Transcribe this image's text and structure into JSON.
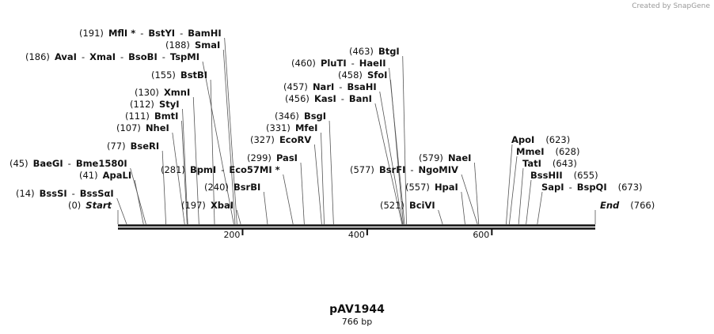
{
  "credit": "Created by SnapGene",
  "plasmid": {
    "name": "pAV1944",
    "size": "766 bp",
    "length": 766
  },
  "separator": "-",
  "axis": {
    "ticks": [
      200,
      400,
      600
    ]
  },
  "sites": [
    {
      "position": {
        "value": 191,
        "label": "(191)"
      },
      "enzymes": [
        "MflI *",
        "BstYI",
        "BamHI"
      ]
    },
    {
      "position": {
        "value": 188,
        "label": "(188)"
      },
      "enzymes": [
        "SmaI"
      ]
    },
    {
      "position": {
        "value": 186,
        "label": "(186)"
      },
      "enzymes": [
        "AvaI",
        "XmaI",
        "BsoBI",
        "TspMI"
      ]
    },
    {
      "position": {
        "value": 155,
        "label": "(155)"
      },
      "enzymes": [
        "BstBI"
      ]
    },
    {
      "position": {
        "value": 130,
        "label": "(130)"
      },
      "enzymes": [
        "XmnI"
      ]
    },
    {
      "position": {
        "value": 112,
        "label": "(112)"
      },
      "enzymes": [
        "StyI"
      ]
    },
    {
      "position": {
        "value": 111,
        "label": "(111)"
      },
      "enzymes": [
        "BmtI"
      ]
    },
    {
      "position": {
        "value": 107,
        "label": "(107)"
      },
      "enzymes": [
        "NheI"
      ]
    },
    {
      "position": {
        "value": 77,
        "label": "(77)"
      },
      "enzymes": [
        "BseRI"
      ]
    },
    {
      "position": {
        "value": 45,
        "label": "(45)"
      },
      "enzymes": [
        "BaeGI",
        "Bme1580I"
      ]
    },
    {
      "position": {
        "value": 41,
        "label": "(41)"
      },
      "enzymes": [
        "ApaLI"
      ]
    },
    {
      "position": {
        "value": 14,
        "label": "(14)"
      },
      "enzymes": [
        "BssSI",
        "BssSαI"
      ]
    },
    {
      "position": {
        "value": 0,
        "label": "(0)"
      },
      "enzymes": [
        "Start"
      ]
    },
    {
      "position": {
        "value": 281,
        "label": "(281)"
      },
      "enzymes": [
        "BpmI",
        "Eco57MI *"
      ]
    },
    {
      "position": {
        "value": 240,
        "label": "(240)"
      },
      "enzymes": [
        "BsrBI"
      ]
    },
    {
      "position": {
        "value": 197,
        "label": "(197)"
      },
      "enzymes": [
        "XbaI"
      ]
    },
    {
      "position": {
        "value": 299,
        "label": "(299)"
      },
      "enzymes": [
        "PasI"
      ]
    },
    {
      "position": {
        "value": 327,
        "label": "(327)"
      },
      "enzymes": [
        "EcoRV"
      ]
    },
    {
      "position": {
        "value": 331,
        "label": "(331)"
      },
      "enzymes": [
        "MfeI"
      ]
    },
    {
      "position": {
        "value": 346,
        "label": "(346)"
      },
      "enzymes": [
        "BsgI"
      ]
    },
    {
      "position": {
        "value": 463,
        "label": "(463)"
      },
      "enzymes": [
        "BtgI"
      ]
    },
    {
      "position": {
        "value": 460,
        "label": "(460)"
      },
      "enzymes": [
        "PluTI",
        "HaeII"
      ]
    },
    {
      "position": {
        "value": 458,
        "label": "(458)"
      },
      "enzymes": [
        "SfoI"
      ]
    },
    {
      "position": {
        "value": 457,
        "label": "(457)"
      },
      "enzymes": [
        "NarI",
        "BsaHI"
      ]
    },
    {
      "position": {
        "value": 456,
        "label": "(456)"
      },
      "enzymes": [
        "KasI",
        "BanI"
      ]
    },
    {
      "position": {
        "value": 577,
        "label": "(577)"
      },
      "enzymes": [
        "BsrFI",
        "NgoMIV"
      ]
    },
    {
      "position": {
        "value": 521,
        "label": "(521)"
      },
      "enzymes": [
        "BciVI"
      ]
    },
    {
      "position": {
        "value": 557,
        "label": "(557)"
      },
      "enzymes": [
        "HpaI"
      ]
    },
    {
      "position": {
        "value": 579,
        "label": "(579)"
      },
      "enzymes": [
        "NaeI"
      ]
    },
    {
      "position": {
        "value": 623,
        "label": "(623)"
      },
      "enzymes": [
        "ApoI"
      ]
    },
    {
      "position": {
        "value": 628,
        "label": "(628)"
      },
      "enzymes": [
        "MmeI"
      ]
    },
    {
      "position": {
        "value": 643,
        "label": "(643)"
      },
      "enzymes": [
        "TatI"
      ]
    },
    {
      "position": {
        "value": 655,
        "label": "(655)"
      },
      "enzymes": [
        "BssHII"
      ]
    },
    {
      "position": {
        "value": 673,
        "label": "(673)"
      },
      "enzymes": [
        "SapI",
        "BspQI"
      ]
    },
    {
      "position": {
        "value": 766,
        "label": "(766)"
      },
      "enzymes": [
        "End"
      ]
    }
  ]
}
